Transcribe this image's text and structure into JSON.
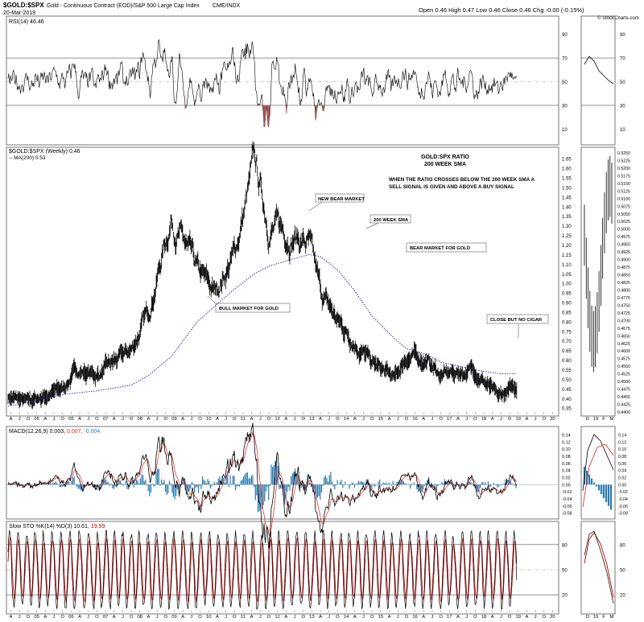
{
  "header": {
    "symbol": "$GOLD:$SPX",
    "description": "Gold - Continuous Contract (EOD)/S&P 500 Large Cap Index",
    "exchange": "CME/INDX",
    "date": "20-Mar-2019",
    "ohlc": "Open 0.46  High 0.47  Low 0.46  Close 0.46  Chg -0.00 (-0.15%)",
    "watermark": "© StockCharts.com"
  },
  "rsi": {
    "label": "RSI(14) 46.46",
    "levels": [
      90,
      70,
      50,
      30,
      10
    ]
  },
  "main": {
    "legend_price": "$GOLD:$SPX (Weekly) 0.46",
    "legend_ma": "-- MA(200) 0.53",
    "title_line1": "GOLD:SPX RATIO",
    "title_line2": "200 WEEK SMA",
    "note_line1": "WHEN THE RATIO CROSSES BELOW THE 200 WEEK SMA A",
    "note_line2": "SELL SIGNAL IS GIVEN AND ABOVE A BUY SIGNAL",
    "ann_bull": "BULL MARKET FOR GOLD",
    "ann_newbear": "NEW BEAR MARKET",
    "ann_sma": "200 WEEK SMA",
    "ann_bear": "BEAR MARKET FOR GOLD",
    "ann_cigar": "CLOSE BUT NO CIGAR",
    "y_ticks": [
      "1.65",
      "1.60",
      "1.55",
      "1.50",
      "1.45",
      "1.40",
      "1.35",
      "1.30",
      "1.25",
      "1.20",
      "1.15",
      "1.10",
      "1.05",
      "1.00",
      "0.95",
      "0.90",
      "0.85",
      "0.80",
      "0.75",
      "0.70",
      "0.65",
      "0.60",
      "0.55",
      "0.50",
      "0.45",
      "0.40",
      "0.35"
    ],
    "right_ticks": [
      "0.5250",
      "0.5225",
      "0.5200",
      "0.5175",
      "0.5150",
      "0.5125",
      "0.5100",
      "0.5075",
      "0.5050",
      "0.5025",
      "0.5000",
      "0.4975",
      "0.4950",
      "0.4925",
      "0.4900",
      "0.4875",
      "0.4850",
      "0.4825",
      "0.4800",
      "0.4775",
      "0.4750",
      "0.4725",
      "0.4700",
      "0.4675",
      "0.4650",
      "0.4625",
      "0.4600",
      "0.4575",
      "0.4550",
      "0.4525",
      "0.4500",
      "0.4475",
      "0.4450",
      "0.4425",
      "0.4400"
    ]
  },
  "macd": {
    "label_base": "MACD(12,26,9)",
    "val1": "0.003,",
    "val2": "0.007,",
    "val3": "-0.004",
    "ticks": [
      "0.14",
      "0.12",
      "0.10",
      "0.08",
      "0.06",
      "0.04",
      "0.02",
      "0.00",
      "-0.02",
      "-0.04",
      "-0.06",
      "-0.08"
    ]
  },
  "sto": {
    "label_base": "Slow STO %K(14) %D(3)",
    "val1": "10.61,",
    "val2": "19.99",
    "ticks": [
      "80",
      "50",
      "20"
    ]
  },
  "x_axis": {
    "labels": [
      "A",
      "J",
      "O",
      "05",
      "A",
      "J",
      "O",
      "06",
      "A",
      "J",
      "O",
      "07",
      "A",
      "J",
      "O",
      "08",
      "A",
      "J",
      "O",
      "09",
      "A",
      "J",
      "O",
      "10",
      "A",
      "J",
      "O",
      "11",
      "A",
      "J",
      "O",
      "12",
      "A",
      "J",
      "O",
      "13",
      "A",
      "J",
      "O",
      "14",
      "A",
      "J",
      "O",
      "15",
      "A",
      "J",
      "O",
      "16",
      "A",
      "J",
      "O",
      "17",
      "A",
      "J",
      "O",
      "18",
      "A",
      "J",
      "O",
      "19",
      "A",
      "J",
      "O",
      "20"
    ],
    "right_labels": [
      "D",
      "19",
      "F",
      "M"
    ]
  },
  "colors": {
    "price": "#000000",
    "sma": "#1a1ab0",
    "macd_line": "#000000",
    "macd_signal": "#e02020",
    "macd_hist": "#2a7ab0",
    "sto_k": "#000000",
    "sto_d": "#c00000",
    "rsi_fill": "#a05a5a"
  },
  "chart_data": {
    "type": "line",
    "title": "GOLD:SPX RATIO 200 WEEK SMA",
    "xlabel": "",
    "ylabel": "",
    "ylim": [
      0.33,
      1.68
    ],
    "x": [
      "2004-06",
      "2005-01",
      "2006-01",
      "2006-06",
      "2007-01",
      "2008-01",
      "2008-07",
      "2009-03",
      "2009-12",
      "2010-06",
      "2011-01",
      "2011-08",
      "2012-01",
      "2012-10",
      "2013-03",
      "2013-07",
      "2014-01",
      "2014-07",
      "2015-01",
      "2015-09",
      "2016-01",
      "2016-08",
      "2017-01",
      "2018-01",
      "2018-09",
      "2019-03"
    ],
    "series": [
      {
        "values": [
          0.41,
          0.38,
          0.45,
          0.55,
          0.52,
          0.65,
          0.85,
          1.35,
          1.05,
          0.95,
          1.15,
          1.62,
          1.3,
          1.25,
          1.2,
          0.95,
          0.8,
          0.7,
          0.58,
          0.5,
          0.62,
          0.6,
          0.52,
          0.55,
          0.4,
          0.46
        ]
      },
      {
        "name": "MA(200)",
        "values": [
          0.36,
          0.38,
          0.42,
          0.43,
          0.44,
          0.47,
          0.52,
          0.62,
          0.8,
          0.88,
          0.97,
          1.05,
          1.09,
          1.13,
          1.15,
          1.14,
          1.07,
          0.96,
          0.83,
          0.71,
          0.66,
          0.63,
          0.59,
          0.55,
          0.53,
          0.53
        ]
      }
    ]
  }
}
